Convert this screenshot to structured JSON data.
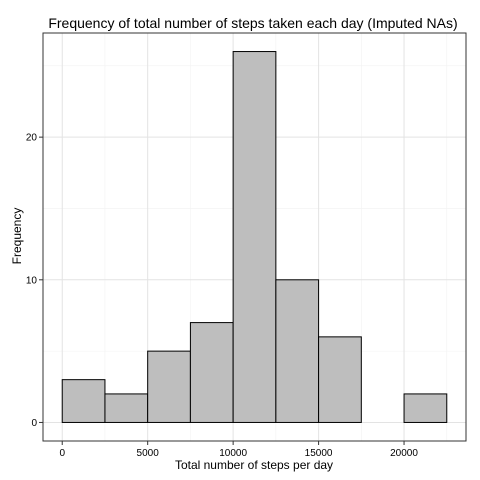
{
  "chart_data": {
    "type": "bar",
    "title": "Frequency of total number of steps taken each day (Imputed NAs)",
    "xlabel": "Total number of steps per day",
    "ylabel": "Frequency",
    "bin_width": 2500,
    "bins": [
      {
        "x0": 0,
        "x1": 2500,
        "value": 3
      },
      {
        "x0": 2500,
        "x1": 5000,
        "value": 2
      },
      {
        "x0": 5000,
        "x1": 7500,
        "value": 5
      },
      {
        "x0": 7500,
        "x1": 10000,
        "value": 7
      },
      {
        "x0": 10000,
        "x1": 12500,
        "value": 26
      },
      {
        "x0": 12500,
        "x1": 15000,
        "value": 10
      },
      {
        "x0": 15000,
        "x1": 17500,
        "value": 6
      },
      {
        "x0": 17500,
        "x1": 20000,
        "value": 0
      },
      {
        "x0": 20000,
        "x1": 22500,
        "value": 2
      }
    ],
    "xlim": [
      -1125,
      23625
    ],
    "ylim": [
      -1.3,
      27.3
    ],
    "x_ticks": [
      0,
      5000,
      10000,
      15000,
      20000
    ],
    "x_tick_labels": [
      "0",
      "5000",
      "10000",
      "15000",
      "20000"
    ],
    "y_ticks": [
      0,
      10,
      20
    ],
    "y_tick_labels": [
      "0",
      "10",
      "20"
    ],
    "grid": true,
    "colors": {
      "bar_fill": "#bebebe",
      "bar_stroke": "#000000",
      "panel_background": "#ffffff",
      "grid": "#e3e3e3"
    }
  }
}
